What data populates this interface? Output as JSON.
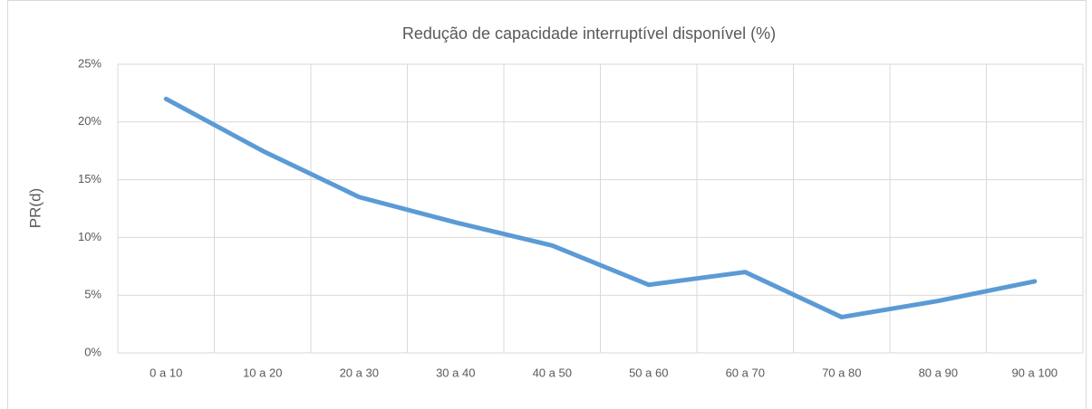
{
  "chart_data": {
    "type": "line",
    "title": "Redução de capacidade interruptível disponível (%)",
    "y_label": "PR(d)",
    "categories": [
      "0 a 10",
      "10 a 20",
      "20 a 30",
      "30 a 40",
      "40 a 50",
      "50 a 60",
      "60 a 70",
      "70 a 80",
      "80 a 90",
      "90 a 100"
    ],
    "values": [
      22,
      17.5,
      13.5,
      11.3,
      9.3,
      5.9,
      7.0,
      3.1,
      4.5,
      6.2
    ],
    "color": "#5b9bd5",
    "ylim": [
      0,
      25
    ],
    "yticks": [
      {
        "value": 0,
        "label": "0%"
      },
      {
        "value": 5,
        "label": "5%"
      },
      {
        "value": 10,
        "label": "10%"
      },
      {
        "value": 15,
        "label": "15%"
      },
      {
        "value": 20,
        "label": "20%"
      },
      {
        "value": 25,
        "label": "25%"
      }
    ],
    "grid": true
  }
}
